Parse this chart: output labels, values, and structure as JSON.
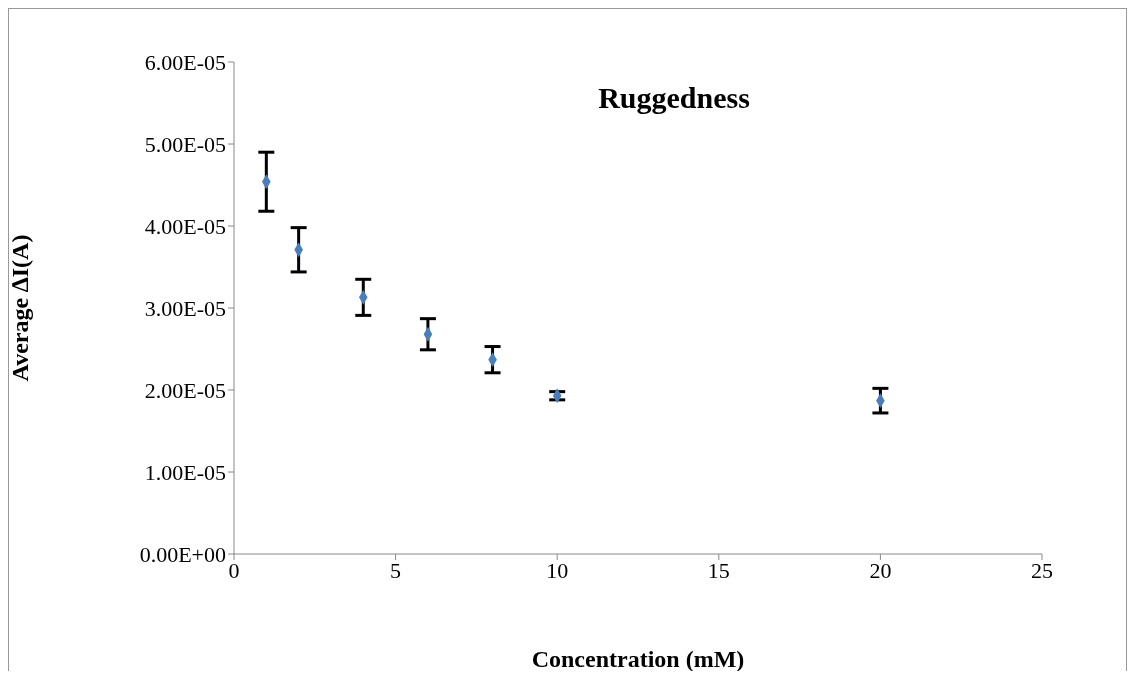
{
  "chart_data": {
    "type": "scatter",
    "title": "Ruggedness",
    "xlabel": "Concentration (mM)",
    "ylabel": "Average  ∆I(A)",
    "x": [
      1,
      2,
      4,
      6,
      8,
      10,
      20
    ],
    "series": [
      {
        "color": "#4a7ebb",
        "values": [
          4.54e-05,
          3.71e-05,
          3.13e-05,
          2.68e-05,
          2.37e-05,
          1.93e-05,
          1.87e-05
        ],
        "errors": [
          3.6e-06,
          2.7e-06,
          2.2e-06,
          1.9e-06,
          1.6e-06,
          5e-07,
          1.5e-06
        ]
      }
    ],
    "xlim": [
      0,
      25
    ],
    "xticks": [
      0,
      5,
      10,
      15,
      20,
      25
    ],
    "ylim": [
      0,
      6e-05
    ],
    "yticks": [
      {
        "value": 0,
        "label": "0.00E+00"
      },
      {
        "value": 1e-05,
        "label": "1.00E-05"
      },
      {
        "value": 2e-05,
        "label": "2.00E-05"
      },
      {
        "value": 3e-05,
        "label": "3.00E-05"
      },
      {
        "value": 4e-05,
        "label": "4.00E-05"
      },
      {
        "value": 5e-05,
        "label": "5.00E-05"
      },
      {
        "value": 6e-05,
        "label": "6.00E-05"
      }
    ],
    "grid": false,
    "legend": false,
    "marker": "diamond"
  }
}
